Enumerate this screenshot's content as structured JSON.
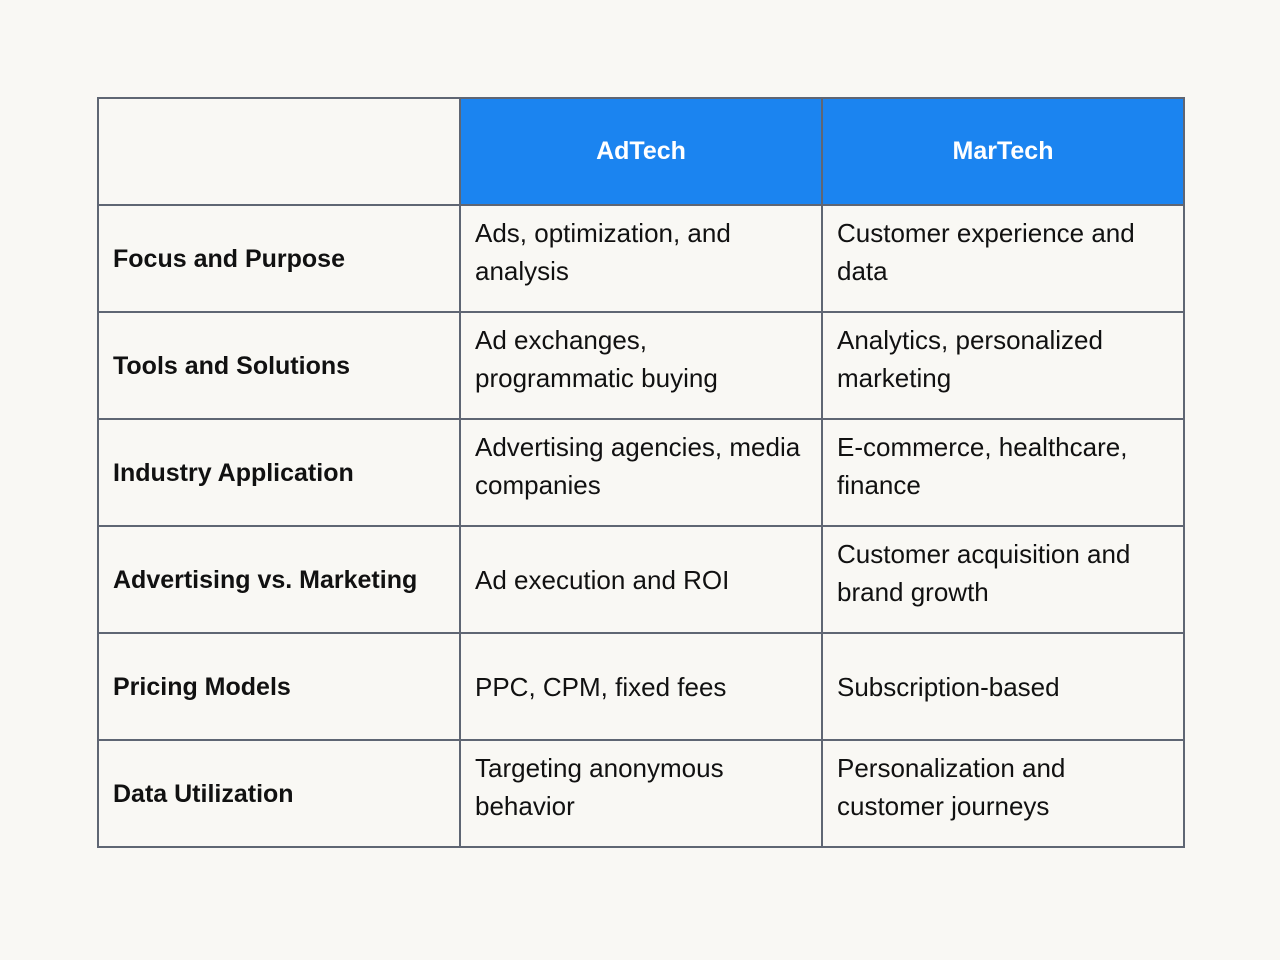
{
  "table": {
    "columns": [
      "AdTech",
      "MarTech"
    ],
    "rows": [
      {
        "label": "Focus and Purpose",
        "adtech": "Ads, optimization, and analysis",
        "martech": "Customer experience and data"
      },
      {
        "label": "Tools and Solutions",
        "adtech": "Ad exchanges, programmatic buying",
        "martech": "Analytics, personalized marketing"
      },
      {
        "label": "Industry Application",
        "adtech": "Advertising agencies, media companies",
        "martech": "E-commerce, healthcare, finance"
      },
      {
        "label": "Advertising vs. Marketing",
        "adtech": "Ad execution and ROI",
        "martech": "Customer acquisition and brand growth"
      },
      {
        "label": "Pricing Models",
        "adtech": "PPC, CPM, fixed fees",
        "martech": "Subscription-based"
      },
      {
        "label": "Data Utilization",
        "adtech": "Targeting anonymous behavior",
        "martech": "Personalization and customer journeys"
      }
    ]
  },
  "colors": {
    "header_bg": "#1b84f0",
    "header_text": "#ffffff",
    "border": "#5f6673",
    "page_bg": "#f9f8f4",
    "text": "#111111"
  }
}
